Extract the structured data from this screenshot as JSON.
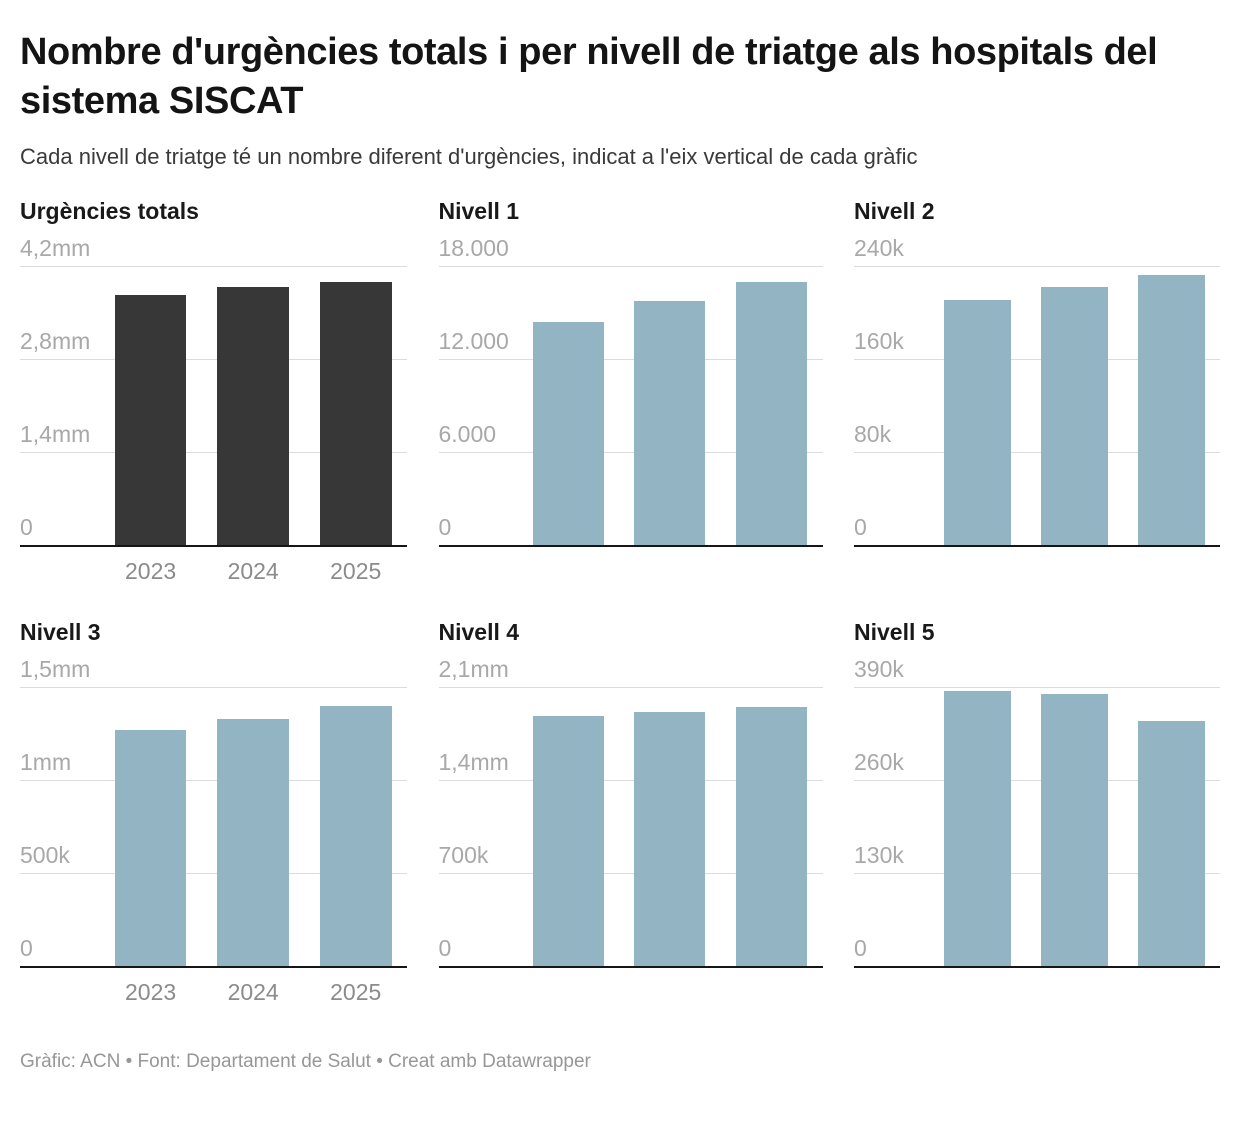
{
  "header": {
    "title": "Nombre d'urgències totals i per nivell de triatge als hospitals del sistema SISCAT",
    "subtitle": "Cada nivell de triatge té un nombre diferent d'urgències, indicat a l'eix vertical de cada gràfic"
  },
  "footer": {
    "credits": "Gràfic: ACN • Font: Departament de Salut • Creat amb Datawrapper"
  },
  "colors": {
    "dark_bar": "#373737",
    "light_blue_bar": "#93b5c3",
    "gridline": "#dcdcdc",
    "axis_line": "#161616",
    "y_tick_label": "#a8a8a8",
    "x_tick_label": "#8b8b8b"
  },
  "chart_data": [
    {
      "type": "bar",
      "title": "Urgències totals",
      "categories": [
        "2023",
        "2024",
        "2025"
      ],
      "values": [
        3760000,
        3880000,
        3960000
      ],
      "ylim": [
        0,
        4200000
      ],
      "yticks": [
        {
          "value": 4200000,
          "label": "4,2mm"
        },
        {
          "value": 2800000,
          "label": "2,8mm"
        },
        {
          "value": 1400000,
          "label": "1,4mm"
        },
        {
          "value": 0,
          "label": "0"
        }
      ],
      "bar_color": "#373737",
      "show_x_labels": true,
      "grid": true,
      "legend": "none"
    },
    {
      "type": "bar",
      "title": "Nivell 1",
      "categories": [
        "2023",
        "2024",
        "2025"
      ],
      "values": [
        14400,
        15750,
        16950
      ],
      "ylim": [
        0,
        18000
      ],
      "yticks": [
        {
          "value": 18000,
          "label": "18.000"
        },
        {
          "value": 12000,
          "label": "12.000"
        },
        {
          "value": 6000,
          "label": "6.000"
        },
        {
          "value": 0,
          "label": "0"
        }
      ],
      "bar_color": "#93b5c3",
      "show_x_labels": false,
      "grid": true,
      "legend": "none"
    },
    {
      "type": "bar",
      "title": "Nivell 2",
      "categories": [
        "2023",
        "2024",
        "2025"
      ],
      "values": [
        211000,
        222000,
        232000
      ],
      "ylim": [
        0,
        240000
      ],
      "yticks": [
        {
          "value": 240000,
          "label": "240k"
        },
        {
          "value": 160000,
          "label": "160k"
        },
        {
          "value": 80000,
          "label": "80k"
        },
        {
          "value": 0,
          "label": "0"
        }
      ],
      "bar_color": "#93b5c3",
      "show_x_labels": false,
      "grid": true,
      "legend": "none"
    },
    {
      "type": "bar",
      "title": "Nivell 3",
      "categories": [
        "2023",
        "2024",
        "2025"
      ],
      "values": [
        1270000,
        1330000,
        1400000
      ],
      "ylim": [
        0,
        1500000
      ],
      "yticks": [
        {
          "value": 1500000,
          "label": "1,5mm"
        },
        {
          "value": 1000000,
          "label": "1mm"
        },
        {
          "value": 500000,
          "label": "500k"
        },
        {
          "value": 0,
          "label": "0"
        }
      ],
      "bar_color": "#93b5c3",
      "show_x_labels": true,
      "grid": true,
      "legend": "none"
    },
    {
      "type": "bar",
      "title": "Nivell 4",
      "categories": [
        "2023",
        "2024",
        "2025"
      ],
      "values": [
        1880000,
        1910000,
        1950000
      ],
      "ylim": [
        0,
        2100000
      ],
      "yticks": [
        {
          "value": 2100000,
          "label": "2,1mm"
        },
        {
          "value": 1400000,
          "label": "1,4mm"
        },
        {
          "value": 700000,
          "label": "700k"
        },
        {
          "value": 0,
          "label": "0"
        }
      ],
      "bar_color": "#93b5c3",
      "show_x_labels": false,
      "grid": true,
      "legend": "none"
    },
    {
      "type": "bar",
      "title": "Nivell 5",
      "categories": [
        "2023",
        "2024",
        "2025"
      ],
      "values": [
        385000,
        380000,
        342000
      ],
      "ylim": [
        0,
        390000
      ],
      "yticks": [
        {
          "value": 390000,
          "label": "390k"
        },
        {
          "value": 260000,
          "label": "260k"
        },
        {
          "value": 130000,
          "label": "130k"
        },
        {
          "value": 0,
          "label": "0"
        }
      ],
      "bar_color": "#93b5c3",
      "show_x_labels": false,
      "grid": true,
      "legend": "none"
    }
  ]
}
